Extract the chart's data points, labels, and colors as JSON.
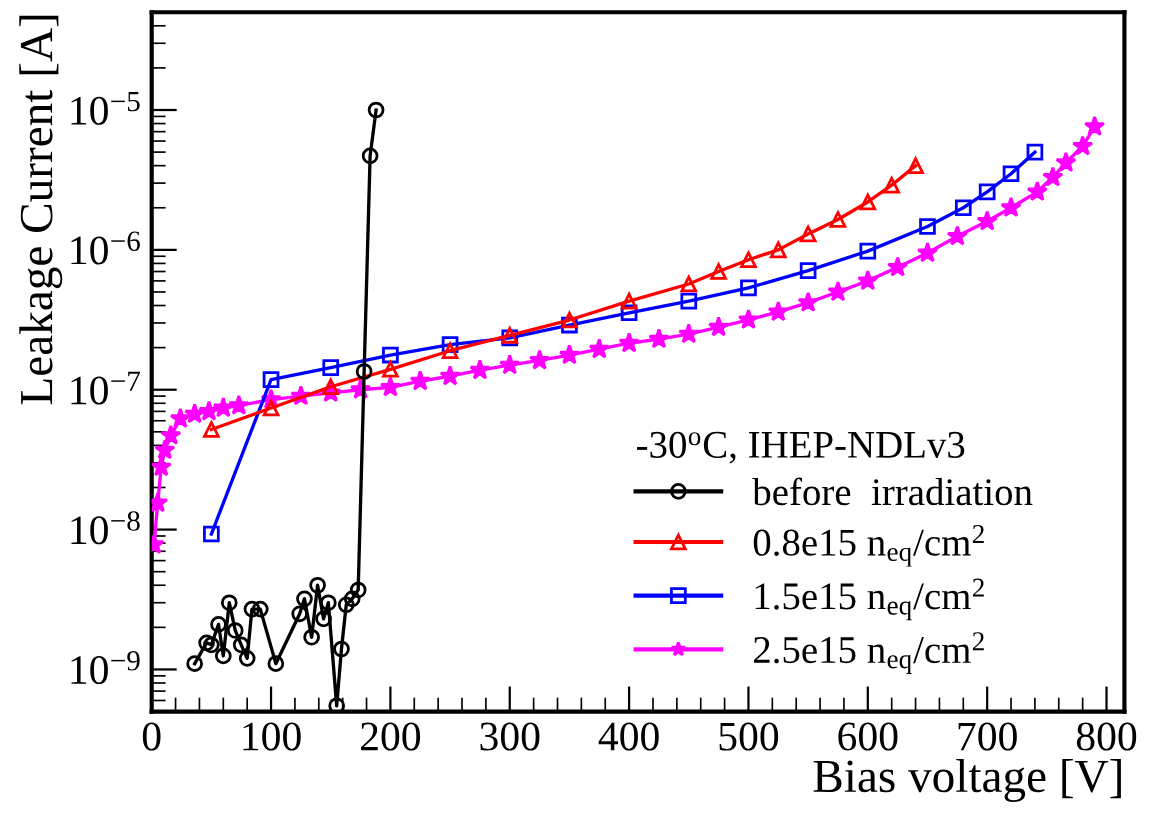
{
  "chart_data": {
    "type": "line",
    "xlabel": "Bias voltage [V]",
    "ylabel": "Leakage Current [A]",
    "legend_title": "-30$^{o}$C, IHEP-NDLv3",
    "log": "y",
    "xlim": [
      0,
      815
    ],
    "ylim": [
      5e-10,
      5e-05
    ],
    "xticks": [
      0,
      100,
      200,
      300,
      400,
      500,
      600,
      700,
      800
    ],
    "yticks": [
      {
        "value": 1e-09,
        "label": "10$^{−9}$"
      },
      {
        "value": 1e-08,
        "label": "10$^{−8}$"
      },
      {
        "value": 1e-07,
        "label": "10$^{−7}$"
      },
      {
        "value": 1e-06,
        "label": "10$^{−6}$"
      },
      {
        "value": 1e-05,
        "label": "10$^{−5}$"
      }
    ],
    "grid": false,
    "legend": "bottom right",
    "series": [
      {
        "name": "before  irradiation",
        "color": "#000000",
        "marker": "circle",
        "x": [
          36,
          46,
          50,
          56,
          60,
          65,
          70,
          75,
          80,
          84,
          91,
          104,
          124,
          128,
          134,
          139,
          144,
          148,
          155,
          159,
          163,
          168,
          173,
          178,
          183,
          188
        ],
        "values": [
          1.1e-09,
          1.55e-09,
          1.5e-09,
          2.1e-09,
          1.25e-09,
          3e-09,
          1.9e-09,
          1.5e-09,
          1.2e-09,
          2.7e-09,
          2.7e-09,
          1.1e-09,
          2.5e-09,
          3.2e-09,
          1.7e-09,
          4e-09,
          2.3e-09,
          3e-09,
          5.5e-10,
          1.4e-09,
          2.9e-09,
          3.2e-09,
          3.7e-09,
          1.35e-07,
          4.7e-06,
          1e-05
        ]
      },
      {
        "name": "0.8e15 n$_{eq}$/cm$^{2}$",
        "color": "#ff0000",
        "marker": "triangle",
        "x": [
          50,
          100,
          150,
          200,
          250,
          300,
          350,
          400,
          450,
          475,
          500,
          525,
          550,
          575,
          600,
          620,
          640
        ],
        "values": [
          5.2e-08,
          7.4e-08,
          1.05e-07,
          1.4e-07,
          1.9e-07,
          2.45e-07,
          3.15e-07,
          4.3e-07,
          5.7e-07,
          7e-07,
          8.5e-07,
          1e-06,
          1.3e-06,
          1.65e-06,
          2.2e-06,
          2.9e-06,
          4e-06
        ]
      },
      {
        "name": "1.5e15 n$_{eq}$/cm$^{2}$",
        "color": "#0000ff",
        "marker": "square",
        "x": [
          50,
          100,
          150,
          200,
          250,
          300,
          350,
          400,
          450,
          500,
          550,
          600,
          650,
          680,
          700,
          720,
          740
        ],
        "values": [
          9.3e-09,
          1.18e-07,
          1.44e-07,
          1.77e-07,
          2.1e-07,
          2.35e-07,
          2.9e-07,
          3.55e-07,
          4.3e-07,
          5.35e-07,
          7.1e-07,
          9.8e-07,
          1.47e-06,
          2e-06,
          2.6e-06,
          3.5e-06,
          5e-06
        ]
      },
      {
        "name": "2.5e15 n$_{eq}$/cm$^{2}$",
        "color": "#ff00ff",
        "marker": "star",
        "x": [
          2,
          5,
          8,
          11,
          16,
          24,
          36,
          48,
          60,
          73,
          100,
          125,
          150,
          175,
          200,
          225,
          250,
          275,
          300,
          325,
          350,
          375,
          400,
          425,
          450,
          475,
          500,
          525,
          550,
          575,
          600,
          625,
          650,
          675,
          700,
          720,
          742,
          755,
          766,
          780,
          790
        ],
        "values": [
          7.8e-09,
          1.55e-08,
          2.8e-08,
          3.7e-08,
          4.7e-08,
          6.2e-08,
          6.7e-08,
          7e-08,
          7.4e-08,
          7.7e-08,
          8.5e-08,
          9e-08,
          9.5e-08,
          1e-07,
          1.04e-07,
          1.15e-07,
          1.25e-07,
          1.38e-07,
          1.5e-07,
          1.62e-07,
          1.77e-07,
          1.95e-07,
          2.15e-07,
          2.3e-07,
          2.5e-07,
          2.8e-07,
          3.16e-07,
          3.6e-07,
          4.2e-07,
          5e-07,
          6e-07,
          7.5e-07,
          9.5e-07,
          1.25e-06,
          1.6e-06,
          2e-06,
          2.6e-06,
          3.3e-06,
          4.2e-06,
          5.5e-06,
          7.6e-06
        ]
      }
    ]
  }
}
